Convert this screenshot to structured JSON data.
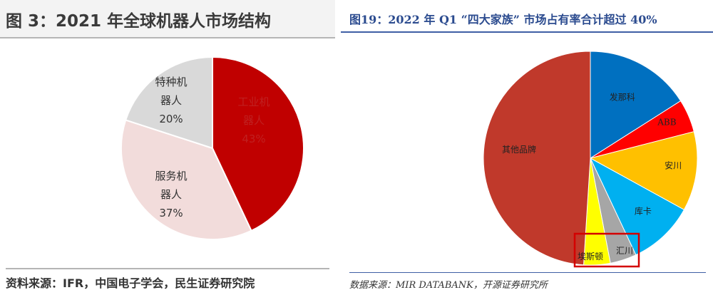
{
  "left": {
    "chart_data": {
      "type": "pie",
      "title": "图 3：2021 年全球机器人市场结构",
      "slices": [
        {
          "label_lines": [
            "工业机",
            "器人",
            "43%"
          ],
          "value": 43,
          "color": "#c00000",
          "text_color": "#c02020"
        },
        {
          "label_lines": [
            "服务机",
            "器人",
            "37%"
          ],
          "value": 37,
          "color": "#f2dcdb",
          "text_color": "#333333"
        },
        {
          "label_lines": [
            "特种机",
            "器人",
            "20%"
          ],
          "value": 20,
          "color": "#d9d9d9",
          "text_color": "#333333"
        }
      ]
    },
    "source": "资料来源：IFR，中国电子学会，民生证券研究院"
  },
  "right": {
    "chart_data": {
      "type": "pie",
      "title": "图19：2022 年 Q1 “四大家族” 市场占有率合计超过 40%",
      "slices": [
        {
          "label": "发那科",
          "value": 16,
          "color": "#0070c0"
        },
        {
          "label": "ABB",
          "value": 5,
          "color": "#ff0000"
        },
        {
          "label": "安川",
          "value": 12,
          "color": "#ffc000"
        },
        {
          "label": "库卡",
          "value": 10,
          "color": "#00b0f0"
        },
        {
          "label": "汇川",
          "value": 4,
          "color": "#a6a6a6"
        },
        {
          "label": "埃斯顿",
          "value": 4,
          "color": "#ffff00"
        },
        {
          "label": "其他品牌",
          "value": 49,
          "color": "#c0392b"
        }
      ]
    },
    "source": "数据来源：MIR DATABANK，开源证券研究所"
  }
}
